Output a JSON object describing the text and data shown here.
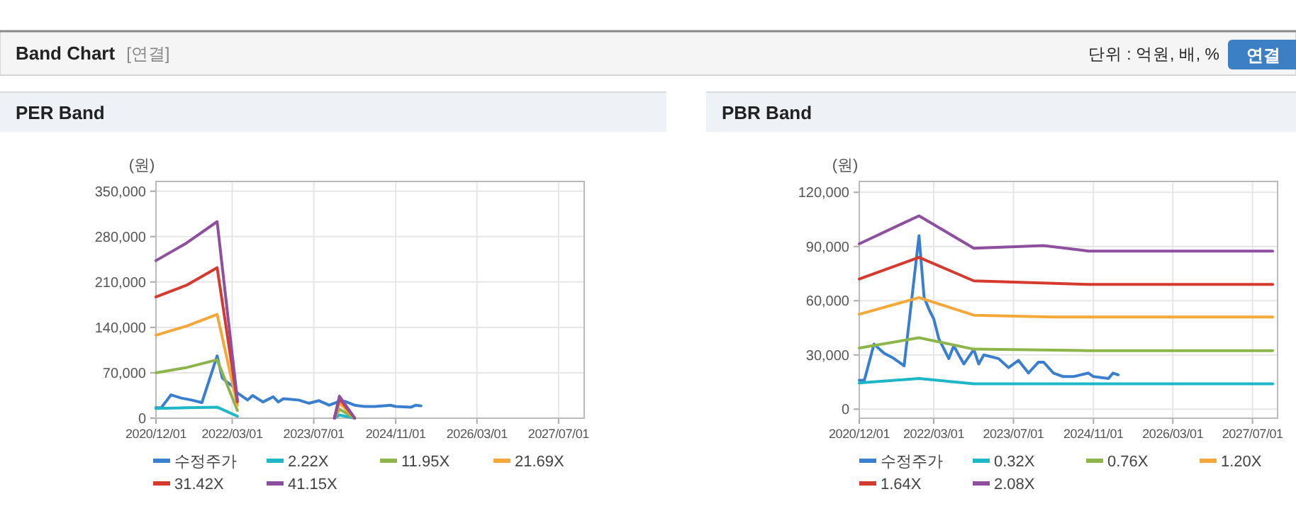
{
  "chart_data": [
    {
      "type": "other",
      "title": "Band Chart",
      "annotations": [
        "[연결]",
        "단위 : 억원, 배, %",
        "연결"
      ]
    },
    {
      "type": "line",
      "title": "PER Band",
      "ylabel": "(원)",
      "xlim": [
        "2020-12-01",
        "2027-12-01"
      ],
      "ylim": [
        0,
        365000
      ],
      "xticks": [
        {
          "value": "2020-12-01",
          "label": "2020/12/01"
        },
        {
          "value": "2022-03-01",
          "label": "2022/03/01"
        },
        {
          "value": "2023-07-01",
          "label": "2023/07/01"
        },
        {
          "value": "2024-11-01",
          "label": "2024/11/01"
        },
        {
          "value": "2026-03-01",
          "label": "2026/03/01"
        },
        {
          "value": "2027-07-01",
          "label": "2027/07/01"
        }
      ],
      "yticks": [
        {
          "value": 0,
          "label": "0"
        },
        {
          "value": 70000,
          "label": "70,000"
        },
        {
          "value": 140000,
          "label": "140,000"
        },
        {
          "value": 210000,
          "label": "210,000"
        },
        {
          "value": 280000,
          "label": "280,000"
        },
        {
          "value": 350000,
          "label": "350,000"
        }
      ],
      "grid": true,
      "legend": "bottom",
      "series": [
        {
          "name": "수정주가",
          "color": "#3a7fcf",
          "x": [
            "2020-12",
            "2021-01",
            "2021-03",
            "2021-05",
            "2021-07",
            "2021-09",
            "2021-12",
            "2022-01",
            "2022-02",
            "2022-03",
            "2022-04",
            "2022-06",
            "2022-07",
            "2022-09",
            "2022-11",
            "2022-12",
            "2023-01",
            "2023-04",
            "2023-06",
            "2023-08",
            "2023-10",
            "2023-12",
            "2024-01",
            "2024-03",
            "2024-05",
            "2024-07",
            "2024-10",
            "2024-11",
            "2025-02",
            "2025-03",
            "2025-04"
          ],
          "values": [
            16000,
            16000,
            36000,
            31000,
            28000,
            24000,
            96000,
            62000,
            55000,
            50000,
            39000,
            28000,
            35000,
            25000,
            33000,
            25000,
            30000,
            28000,
            23000,
            27000,
            20000,
            26000,
            26000,
            20000,
            18000,
            18000,
            20000,
            18000,
            17000,
            20000,
            19000
          ]
        },
        {
          "name": "2.22X",
          "color": "#1fb6c8",
          "x": [
            "2020-12",
            "2021-06",
            "2021-12",
            "2022-04",
            "2022-05",
            "2023-11",
            "2023-12",
            "2024-03"
          ],
          "values": [
            15000,
            16000,
            17000,
            3000,
            null,
            0,
            5000,
            0
          ]
        },
        {
          "name": "11.95X",
          "color": "#8db54b",
          "x": [
            "2020-12",
            "2021-06",
            "2021-12",
            "2022-04",
            "2022-05",
            "2023-11",
            "2023-12",
            "2024-03"
          ],
          "values": [
            70000,
            78000,
            90000,
            12000,
            null,
            0,
            14000,
            0
          ]
        },
        {
          "name": "21.69X",
          "color": "#f5a83a",
          "x": [
            "2020-12",
            "2021-06",
            "2021-12",
            "2022-04",
            "2022-05",
            "2023-11",
            "2023-12",
            "2024-03"
          ],
          "values": [
            128000,
            142000,
            160000,
            20000,
            null,
            0,
            24000,
            0
          ]
        },
        {
          "name": "31.42X",
          "color": "#d63a2e",
          "x": [
            "2020-12",
            "2021-06",
            "2021-12",
            "2022-04",
            "2022-05",
            "2023-11",
            "2023-12",
            "2024-03"
          ],
          "values": [
            187000,
            205000,
            232000,
            25000,
            null,
            0,
            30000,
            0
          ]
        },
        {
          "name": "41.15X",
          "color": "#8e4f9f",
          "x": [
            "2020-12",
            "2021-06",
            "2021-12",
            "2022-04",
            "2022-05",
            "2023-11",
            "2023-12",
            "2024-03"
          ],
          "values": [
            243000,
            270000,
            303000,
            28000,
            null,
            0,
            34000,
            0
          ]
        }
      ]
    },
    {
      "type": "line",
      "title": "PBR Band",
      "ylabel": "(원)",
      "xlim": [
        "2020-12-01",
        "2027-12-01"
      ],
      "ylim": [
        -5000,
        126000
      ],
      "xticks": [
        {
          "value": "2020-12-01",
          "label": "2020/12/01"
        },
        {
          "value": "2022-03-01",
          "label": "2022/03/01"
        },
        {
          "value": "2023-07-01",
          "label": "2023/07/01"
        },
        {
          "value": "2024-11-01",
          "label": "2024/11/01"
        },
        {
          "value": "2026-03-01",
          "label": "2026/03/01"
        },
        {
          "value": "2027-07-01",
          "label": "2027/07/01"
        }
      ],
      "yticks": [
        {
          "value": 0,
          "label": "0"
        },
        {
          "value": 30000,
          "label": "30,000"
        },
        {
          "value": 60000,
          "label": "60,000"
        },
        {
          "value": 90000,
          "label": "90,000"
        },
        {
          "value": 120000,
          "label": "120,000"
        }
      ],
      "grid": true,
      "legend": "bottom",
      "series": [
        {
          "name": "수정주가",
          "color": "#3a7fcf",
          "x": [
            "2020-12",
            "2021-01",
            "2021-03",
            "2021-05",
            "2021-07",
            "2021-09",
            "2021-12",
            "2022-01",
            "2022-02",
            "2022-03",
            "2022-04",
            "2022-06",
            "2022-07",
            "2022-09",
            "2022-11",
            "2022-12",
            "2023-01",
            "2023-04",
            "2023-06",
            "2023-08",
            "2023-10",
            "2023-12",
            "2024-01",
            "2024-03",
            "2024-05",
            "2024-07",
            "2024-10",
            "2024-11",
            "2025-02",
            "2025-03",
            "2025-04"
          ],
          "values": [
            16000,
            16000,
            36000,
            31000,
            28000,
            24000,
            96000,
            62000,
            55000,
            50000,
            39000,
            28000,
            35000,
            25000,
            33000,
            25000,
            30000,
            28000,
            23000,
            27000,
            20000,
            26000,
            26000,
            20000,
            18000,
            18000,
            20000,
            18000,
            17000,
            20000,
            19000
          ]
        },
        {
          "name": "0.32X",
          "color": "#1fb6c8",
          "x": [
            "2020-12",
            "2021-12",
            "2022-11",
            "2027-11"
          ],
          "values": [
            14500,
            17000,
            14000,
            14000
          ]
        },
        {
          "name": "0.76X",
          "color": "#8db54b",
          "x": [
            "2020-12",
            "2021-12",
            "2022-11",
            "2024-10",
            "2027-11"
          ],
          "values": [
            33800,
            39500,
            33200,
            32400,
            32400
          ]
        },
        {
          "name": "1.20X",
          "color": "#f5a83a",
          "x": [
            "2020-12",
            "2021-12",
            "2022-11",
            "2024-03",
            "2027-11"
          ],
          "values": [
            52500,
            61700,
            52000,
            51000,
            51000
          ]
        },
        {
          "name": "1.64X",
          "color": "#d63a2e",
          "x": [
            "2020-12",
            "2021-12",
            "2022-11",
            "2024-10",
            "2027-11"
          ],
          "values": [
            72000,
            84000,
            71000,
            69000,
            69000
          ]
        },
        {
          "name": "2.08X",
          "color": "#8e4f9f",
          "x": [
            "2020-12",
            "2021-12",
            "2022-11",
            "2024-01",
            "2024-10",
            "2027-11"
          ],
          "values": [
            91500,
            107000,
            89000,
            90500,
            87500,
            87500
          ]
        }
      ]
    }
  ]
}
